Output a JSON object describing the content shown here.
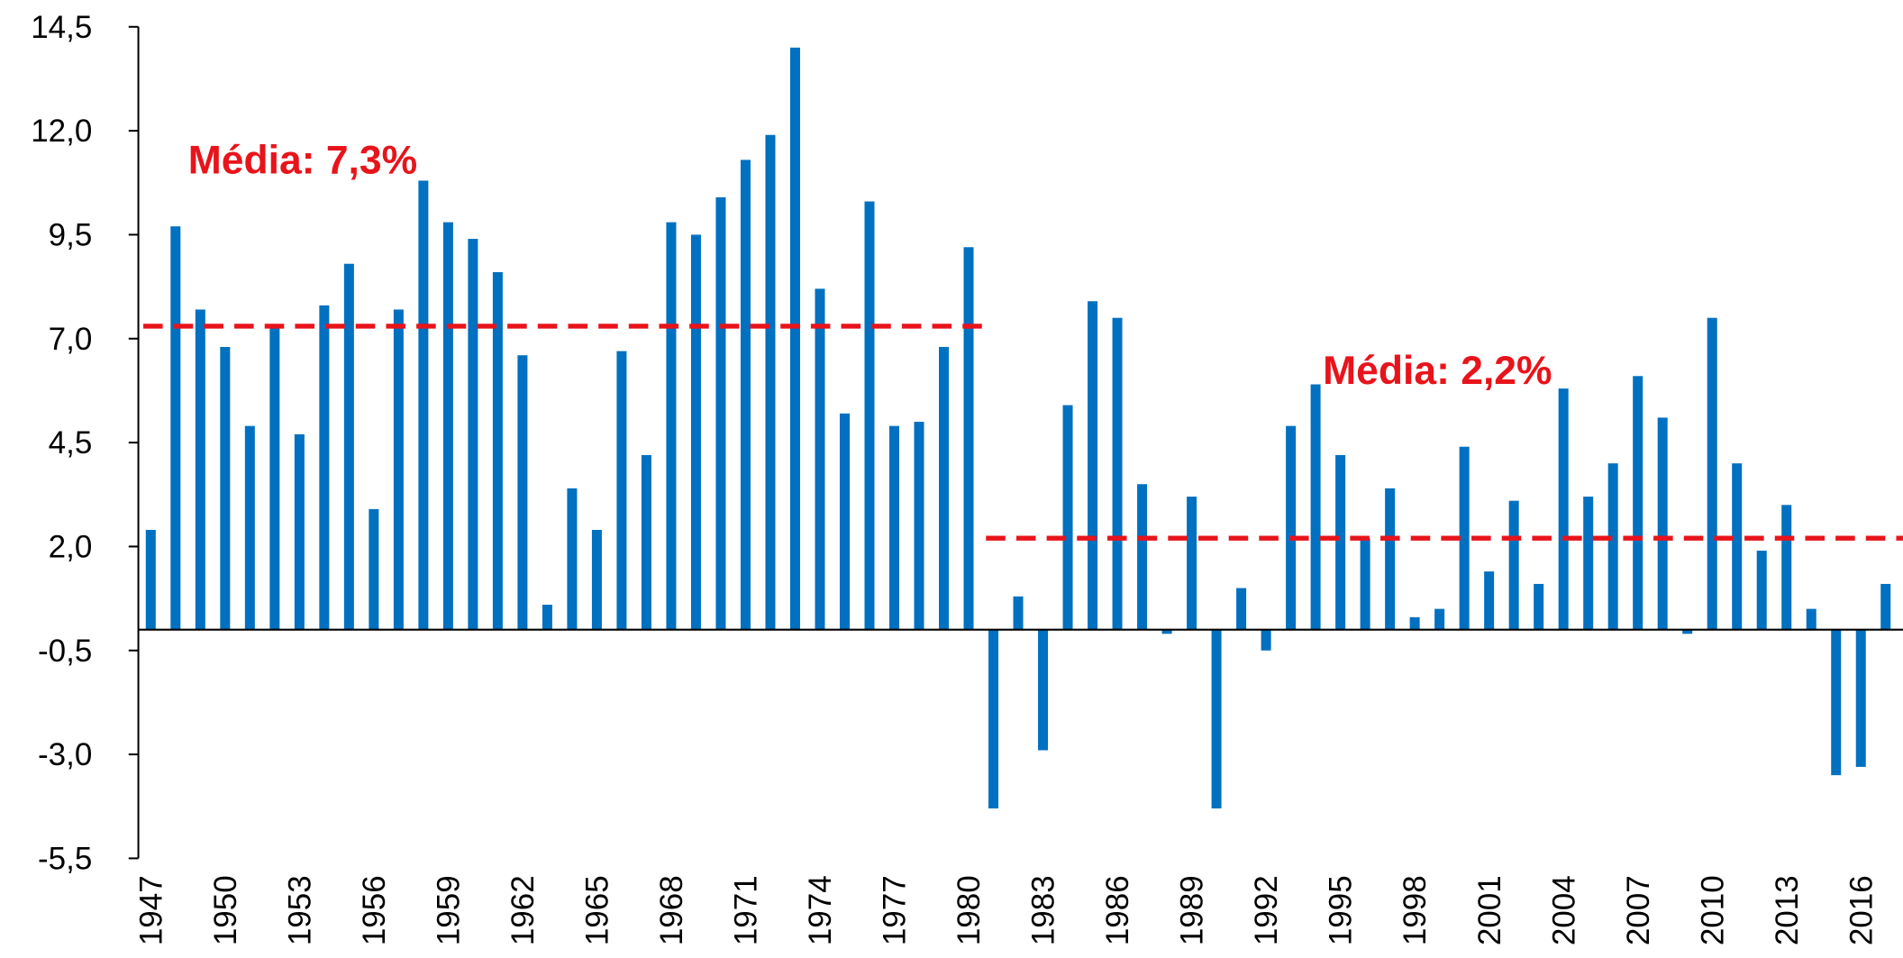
{
  "chart_data": {
    "type": "bar",
    "color": "#0070c0",
    "x": [
      1947,
      1948,
      1949,
      1950,
      1951,
      1952,
      1953,
      1954,
      1955,
      1956,
      1957,
      1958,
      1959,
      1960,
      1961,
      1962,
      1963,
      1964,
      1965,
      1966,
      1967,
      1968,
      1969,
      1970,
      1971,
      1972,
      1973,
      1974,
      1975,
      1976,
      1977,
      1978,
      1979,
      1980,
      1981,
      1982,
      1983,
      1984,
      1985,
      1986,
      1987,
      1988,
      1989,
      1990,
      1991,
      1992,
      1993,
      1994,
      1995,
      1996,
      1997,
      1998,
      1999,
      2000,
      2001,
      2002,
      2003,
      2004,
      2005,
      2006,
      2007,
      2008,
      2009,
      2010,
      2011,
      2012,
      2013,
      2014,
      2015,
      2016,
      2017
    ],
    "values": [
      2.4,
      9.7,
      7.7,
      6.8,
      4.9,
      7.3,
      4.7,
      7.8,
      8.8,
      2.9,
      7.7,
      10.8,
      9.8,
      9.4,
      8.6,
      6.6,
      0.6,
      3.4,
      2.4,
      6.7,
      4.2,
      9.8,
      9.5,
      10.4,
      11.3,
      11.9,
      14.0,
      8.2,
      5.2,
      10.3,
      4.9,
      5.0,
      6.8,
      9.2,
      -4.3,
      0.8,
      -2.9,
      5.4,
      7.9,
      7.5,
      3.5,
      -0.1,
      3.2,
      -4.3,
      1.0,
      -0.5,
      4.9,
      5.9,
      4.2,
      2.2,
      3.4,
      0.3,
      0.5,
      4.4,
      1.4,
      3.1,
      1.1,
      5.8,
      3.2,
      4.0,
      6.1,
      5.1,
      -0.1,
      7.5,
      4.0,
      1.9,
      3.0,
      0.5,
      -3.5,
      -3.3,
      1.1
    ],
    "xlim": [
      1946.5,
      2017.7
    ],
    "xticks": [
      1947,
      1950,
      1953,
      1956,
      1959,
      1962,
      1965,
      1968,
      1971,
      1974,
      1977,
      1980,
      1983,
      1986,
      1989,
      1992,
      1995,
      1998,
      2001,
      2004,
      2007,
      2010,
      2013,
      2016
    ],
    "ylim": [
      -5.5,
      14.5
    ],
    "yticks": [
      {
        "value": -5.5,
        "label": "-5,5"
      },
      {
        "value": -3,
        "label": "-3,0"
      },
      {
        "value": -0.5,
        "label": "-0,5"
      },
      {
        "value": 2,
        "label": "2,0"
      },
      {
        "value": 4.5,
        "label": "4,5"
      },
      {
        "value": 7,
        "label": "7,0"
      },
      {
        "value": 9.5,
        "label": "9,5"
      },
      {
        "value": 12,
        "label": "12,0"
      },
      {
        "value": 14.5,
        "label": "14,5"
      }
    ],
    "mean_lines": [
      {
        "label": "Média: 7,3%",
        "value": 7.3,
        "from": 1947,
        "to": 1980,
        "color": "#e8141b"
      },
      {
        "label": "Média: 2,2%",
        "value": 2.2,
        "from": 1981,
        "to": 2017,
        "color": "#e8141b"
      }
    ]
  }
}
